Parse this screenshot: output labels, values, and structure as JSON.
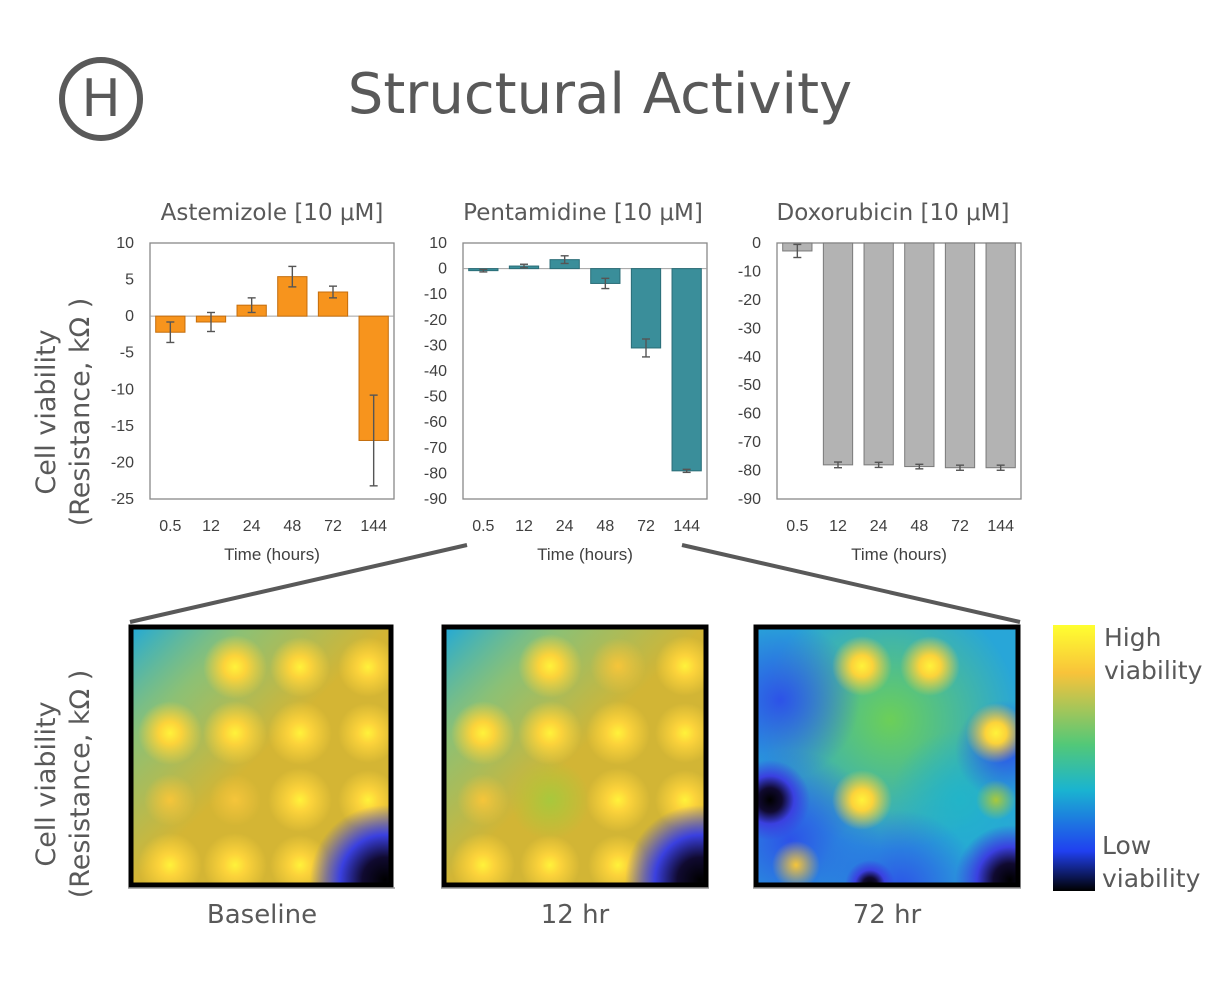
{
  "header": {
    "panel_letter": "H",
    "title": "Structural Activity"
  },
  "y_axis_label": {
    "line1": "Cell viability",
    "line2": "(Resistance, kΩ )"
  },
  "colors": {
    "astemizole": "#F7941D",
    "pentamidine": "#3A8E9A",
    "doxorubicin": "#B3B3B3"
  },
  "chart_data": [
    {
      "type": "bar",
      "title": "Astemizole [10 μM]",
      "xlabel": "Time (hours)",
      "ylabel": "Cell viability (Resistance, kΩ )",
      "categories": [
        "0.5",
        "12",
        "24",
        "48",
        "72",
        "144"
      ],
      "values": [
        -2.2,
        -0.8,
        1.5,
        5.4,
        3.3,
        -17
      ],
      "errors": [
        1.4,
        1.3,
        1.0,
        1.4,
        0.8,
        6.2
      ],
      "ylim": [
        -25,
        10
      ],
      "yticks": [
        10,
        5,
        0,
        -5,
        -10,
        -15,
        -20,
        -25
      ],
      "color": "#F7941D"
    },
    {
      "type": "bar",
      "title": "Pentamidine [10 μM]",
      "xlabel": "Time (hours)",
      "ylabel": "Cell viability (Resistance, kΩ )",
      "categories": [
        "0.5",
        "12",
        "24",
        "48",
        "72",
        "144"
      ],
      "values": [
        -0.8,
        1.0,
        3.5,
        -5.8,
        -31,
        -79
      ],
      "errors": [
        0.5,
        0.7,
        1.5,
        2.0,
        3.5,
        0.6
      ],
      "ylim": [
        -90,
        10
      ],
      "yticks": [
        10,
        0,
        -10,
        -20,
        -30,
        -40,
        -50,
        -60,
        -70,
        -80,
        -90
      ],
      "color": "#3A8E9A"
    },
    {
      "type": "bar",
      "title": "Doxorubicin [10 μM]",
      "xlabel": "Time (hours)",
      "ylabel": "Cell viability (Resistance, kΩ )",
      "categories": [
        "0.5",
        "12",
        "24",
        "48",
        "72",
        "144"
      ],
      "values": [
        -2.8,
        -78,
        -78,
        -78.6,
        -79,
        -79
      ],
      "errors": [
        2.3,
        1.0,
        0.9,
        0.8,
        0.9,
        0.9
      ],
      "ylim": [
        -90,
        0
      ],
      "yticks": [
        0,
        -10,
        -20,
        -30,
        -40,
        -50,
        -60,
        -70,
        -80,
        -90
      ],
      "color": "#B3B3B3"
    }
  ],
  "heatmaps": [
    {
      "caption": "Baseline"
    },
    {
      "caption": "12 hr"
    },
    {
      "caption": "72 hr"
    }
  ],
  "colorbar": {
    "high_line1": "High",
    "high_line2": "viability",
    "low_line1": "Low",
    "low_line2": "viability"
  }
}
